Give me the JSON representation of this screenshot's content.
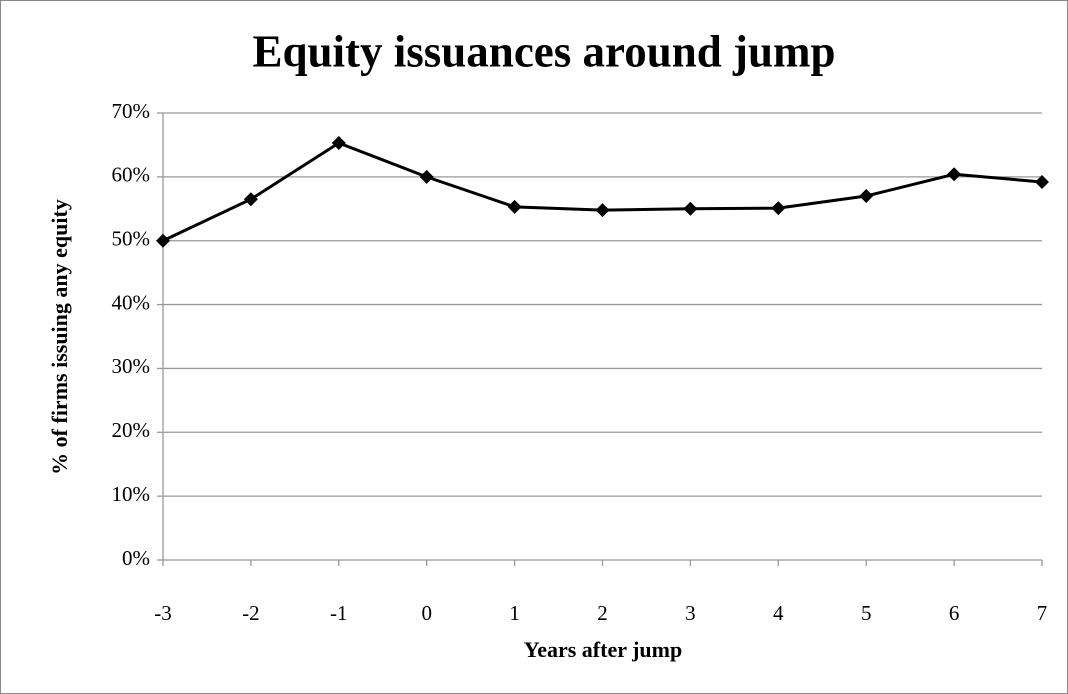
{
  "chart_data": {
    "type": "line",
    "title": "Equity issuances around jump",
    "x_label": "Years after jump",
    "y_label": "% of firms issuing any equity",
    "x": [
      -3,
      -2,
      -1,
      0,
      1,
      2,
      3,
      4,
      5,
      6,
      7
    ],
    "xlim": [
      -3,
      7
    ],
    "xticks": [
      -3,
      -2,
      -1,
      0,
      1,
      2,
      3,
      4,
      5,
      6,
      7
    ],
    "ylim": [
      0,
      70
    ],
    "yticks": [
      {
        "value": 0,
        "label": "0%"
      },
      {
        "value": 10,
        "label": "10%"
      },
      {
        "value": 20,
        "label": "20%"
      },
      {
        "value": 30,
        "label": "30%"
      },
      {
        "value": 40,
        "label": "40%"
      },
      {
        "value": 50,
        "label": "50%"
      },
      {
        "value": 60,
        "label": "60%"
      },
      {
        "value": 70,
        "label": "70%"
      }
    ],
    "grid": true,
    "series": [
      {
        "color": "#000000",
        "values": [
          50.0,
          56.5,
          65.3,
          60.0,
          55.3,
          54.8,
          55.0,
          55.1,
          57.0,
          60.4,
          59.2
        ]
      }
    ]
  }
}
